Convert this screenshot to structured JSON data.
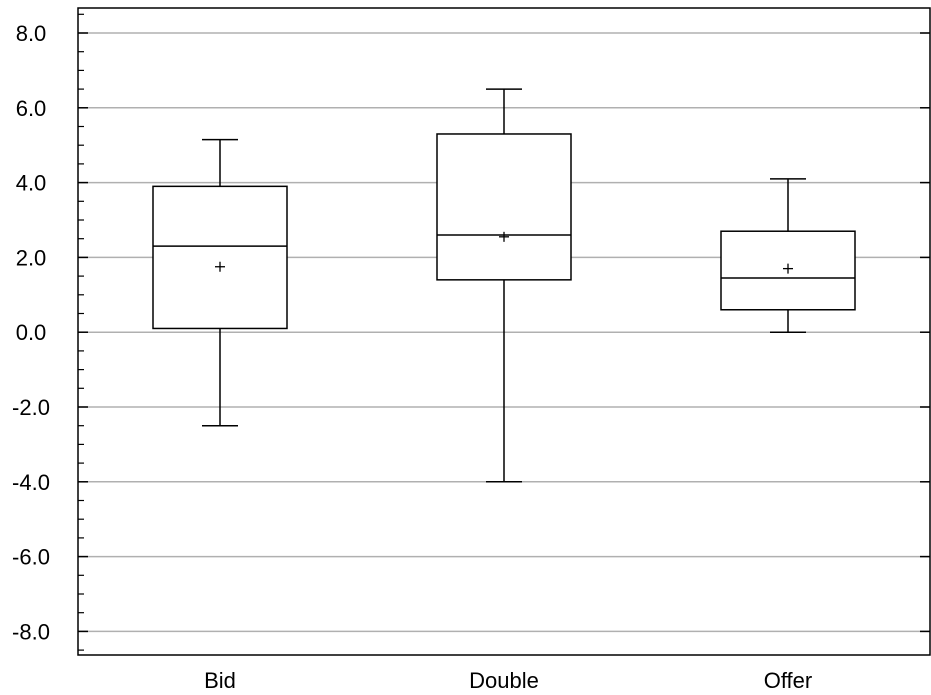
{
  "chart_data": {
    "type": "box",
    "title": "",
    "xlabel": "",
    "ylabel": "",
    "ylim": [
      -8.6,
      8.6
    ],
    "yticks": [
      8.0,
      6.0,
      4.0,
      2.0,
      0.0,
      -2.0,
      -4.0,
      -6.0,
      -8.0
    ],
    "ytick_labels": [
      "8.0",
      "6.0",
      "4.0",
      "2.0",
      "0.0",
      "-2.0",
      "-4.0",
      "-6.0",
      "-8.0"
    ],
    "grid": "horizontal",
    "categories": [
      "Bid",
      "Double",
      "Offer"
    ],
    "boxes": [
      {
        "category": "Bid",
        "min": -2.5,
        "q1": 0.1,
        "median": 2.3,
        "q3": 3.9,
        "max": 5.15,
        "mean": 1.75
      },
      {
        "category": "Double",
        "min": -4.0,
        "q1": 1.4,
        "median": 2.6,
        "q3": 5.3,
        "max": 6.5,
        "mean": 2.55
      },
      {
        "category": "Offer",
        "min": 0.0,
        "q1": 0.6,
        "median": 1.45,
        "q3": 2.7,
        "max": 4.1,
        "mean": 1.7
      }
    ],
    "colors": {
      "gridline": "#b0b0b0",
      "stroke": "#000000",
      "background": "#ffffff"
    }
  }
}
